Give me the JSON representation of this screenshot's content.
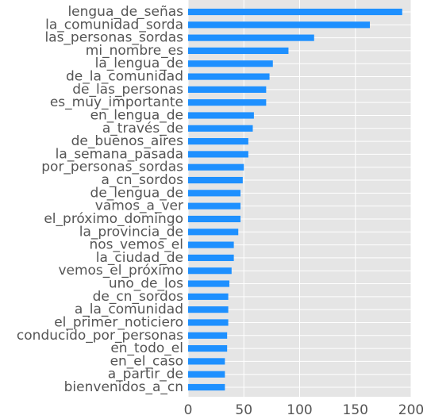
{
  "chart_data": {
    "type": "bar",
    "orientation": "horizontal",
    "title": "",
    "xlabel": "",
    "ylabel": "",
    "xlim": [
      0,
      200
    ],
    "x_ticks": [
      0,
      50,
      100,
      150,
      200
    ],
    "grid": true,
    "legend": "none",
    "bar_color": "#1e90ff",
    "background_color": "#e5e5e5",
    "categories": [
      "lengua_de_señas",
      "la_comunidad_sorda",
      "las_personas_sordas",
      "mi_nombre_es",
      "la_lengua_de",
      "de_la_comunidad",
      "de_las_personas",
      "es_muy_importante",
      "en_lengua_de",
      "a_través_de",
      "de_buenos_aires",
      "la_semana_pasada",
      "por_personas_sordas",
      "a_cn_sordos",
      "de_lengua_de",
      "vamos_a_ver",
      "el_próximo_domingo",
      "la_provincia_de",
      "nos_vemos_el",
      "la_ciudad_de",
      "vemos_el_próximo",
      "uno_de_los",
      "de_cn_sordos",
      "a_la_comunidad",
      "el_primer_noticiero",
      "conducido_por_personas",
      "en_todo_el",
      "en_el_caso",
      "a_partir_de",
      "bienvenidos_a_cn"
    ],
    "values": [
      192,
      163,
      113,
      90,
      76,
      73,
      70,
      70,
      59,
      58,
      54,
      54,
      50,
      49,
      47,
      47,
      47,
      45,
      41,
      41,
      39,
      37,
      36,
      36,
      36,
      35,
      35,
      33,
      33,
      33
    ]
  }
}
